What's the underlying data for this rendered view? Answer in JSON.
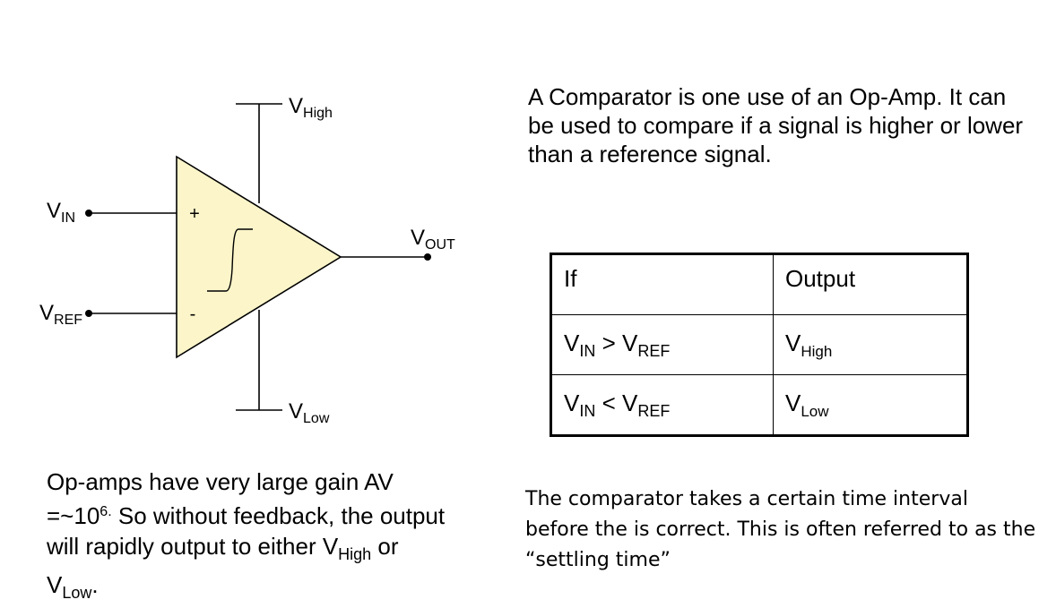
{
  "labels": {
    "v_high": {
      "base": "V",
      "sub": "High"
    },
    "v_low": {
      "base": "V",
      "sub": "Low"
    },
    "v_in": {
      "base": "V",
      "sub": "IN"
    },
    "v_ref": {
      "base": "V",
      "sub": "REF"
    },
    "v_out": {
      "base": "V",
      "sub": "OUT"
    },
    "plus": "+",
    "minus": "-"
  },
  "colors": {
    "triangle_fill": "#fbf5c9",
    "line": "#000000"
  },
  "intro_text": "A Comparator is one use of an Op-Amp. It can be used to compare if a signal is higher or lower than a reference signal.",
  "table": {
    "header": {
      "if": "If",
      "output": "Output"
    },
    "rows": [
      {
        "lhs": {
          "base": "V",
          "sub": "IN"
        },
        "op": ">",
        "rhs": {
          "base": "V",
          "sub": "REF"
        },
        "out": {
          "base": "V",
          "sub": "High"
        }
      },
      {
        "lhs": {
          "base": "V",
          "sub": "IN"
        },
        "op": "<",
        "rhs": {
          "base": "V",
          "sub": "REF"
        },
        "out": {
          "base": "V",
          "sub": "Low"
        }
      }
    ]
  },
  "gain_text": {
    "line1": "Op-amps have very large gain AV =~10",
    "exp": "6.",
    "line2": " So without feedback, the output will rapidly output to either ",
    "v1_base": "V",
    "v1_sub": "High",
    "or": " or ",
    "v2_base": "V",
    "v2_sub": "Low",
    "end": "."
  },
  "settling_text": "The comparator takes a certain time interval before the is correct. This is often referred to as the “settling time”"
}
